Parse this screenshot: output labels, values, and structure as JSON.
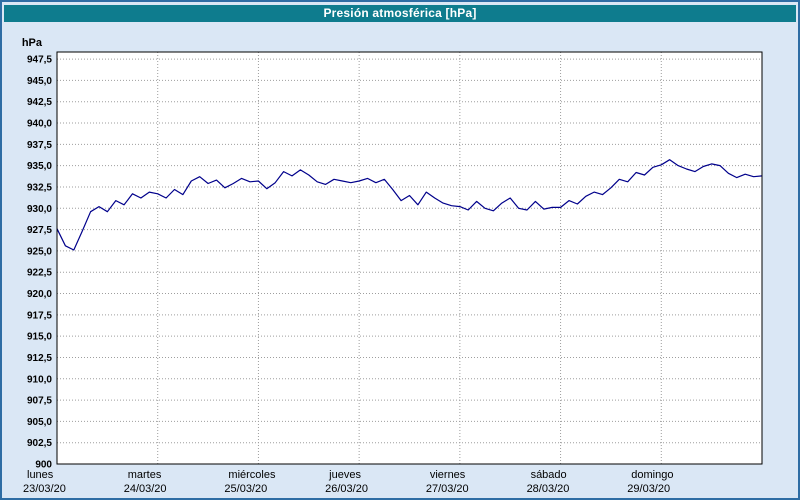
{
  "window": {
    "title": "Presión atmosférica [hPa]"
  },
  "colors": {
    "title_bar_bg": "#0e7c8e",
    "title_text": "#ffffff",
    "window_bg": "#dae7f5",
    "window_border": "#2e6da4",
    "plot_bg": "#ffffff",
    "grid": "#9e9e9e",
    "frame": "#000000",
    "line": "#00008b"
  },
  "y_axis": {
    "unit_label": "hPa",
    "min": 900,
    "max": 948.33,
    "tick_interval": 2.5,
    "tick_labels": [
      "947,5",
      "945,0",
      "942,5",
      "940,0",
      "937,5",
      "935,0",
      "932,5",
      "930,0",
      "927,5",
      "925,0",
      "922,5",
      "920,0",
      "917,5",
      "915,0",
      "912,5",
      "910,0",
      "907,5",
      "905,0",
      "902,5",
      "900"
    ]
  },
  "x_axis": {
    "days": [
      {
        "name": "lunes",
        "date": "23/03/20"
      },
      {
        "name": "martes",
        "date": "24/03/20"
      },
      {
        "name": "miércoles",
        "date": "25/03/20"
      },
      {
        "name": "jueves",
        "date": "26/03/20"
      },
      {
        "name": "viernes",
        "date": "27/03/20"
      },
      {
        "name": "sábado",
        "date": "28/03/20"
      },
      {
        "name": "domingo",
        "date": "29/03/20"
      }
    ]
  },
  "chart_data": {
    "type": "line",
    "title": "Presión atmosférica [hPa]",
    "ylabel": "hPa",
    "ylim": [
      900,
      948.33
    ],
    "xlabel": "",
    "x_range_days": 7,
    "x_start": "lunes 23/03/20 00:00",
    "sample_interval_hours": 2,
    "grid": true,
    "legend": false,
    "series": [
      {
        "name": "Presión atmosférica",
        "values": [
          927.6,
          925.6,
          925.1,
          927.3,
          929.6,
          930.2,
          929.6,
          930.9,
          930.4,
          931.7,
          931.2,
          931.9,
          931.7,
          931.2,
          932.2,
          931.6,
          933.2,
          933.7,
          932.9,
          933.3,
          932.4,
          932.9,
          933.5,
          933.1,
          933.2,
          932.3,
          933.0,
          934.3,
          933.8,
          934.5,
          933.9,
          933.1,
          932.8,
          933.4,
          933.2,
          933.0,
          933.2,
          933.5,
          933.0,
          933.4,
          932.2,
          930.9,
          931.5,
          930.4,
          931.9,
          931.2,
          930.6,
          930.3,
          930.2,
          929.8,
          930.8,
          930.0,
          929.7,
          930.6,
          931.2,
          930.0,
          929.8,
          930.8,
          929.9,
          930.1,
          930.1,
          930.9,
          930.5,
          931.4,
          931.9,
          931.6,
          932.4,
          933.4,
          933.1,
          934.2,
          933.9,
          934.8,
          935.1,
          935.7,
          935.0,
          934.6,
          934.3,
          934.9,
          935.2,
          935.0,
          934.1,
          933.6,
          934.0,
          933.7,
          933.8
        ]
      }
    ]
  }
}
